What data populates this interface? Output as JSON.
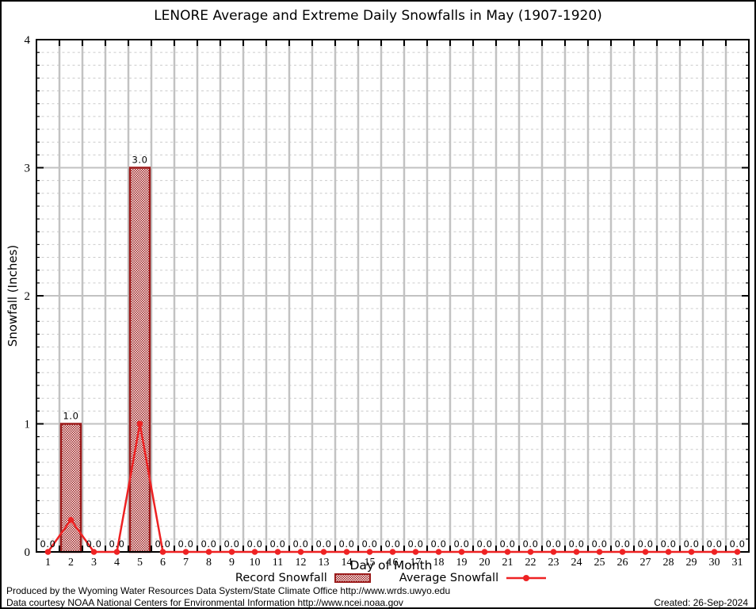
{
  "title": "LENORE Average and Extreme Daily Snowfalls in May (1907-1920)",
  "chart_data": {
    "type": "bar",
    "categories": [
      1,
      2,
      3,
      4,
      5,
      6,
      7,
      8,
      9,
      10,
      11,
      12,
      13,
      14,
      15,
      16,
      17,
      18,
      19,
      20,
      21,
      22,
      23,
      24,
      25,
      26,
      27,
      28,
      29,
      30,
      31
    ],
    "series": [
      {
        "name": "Record Snowfall",
        "render": "bar",
        "values": [
          0.0,
          1.0,
          0.0,
          0.0,
          3.0,
          0.0,
          0.0,
          0.0,
          0.0,
          0.0,
          0.0,
          0.0,
          0.0,
          0.0,
          0.0,
          0.0,
          0.0,
          0.0,
          0.0,
          0.0,
          0.0,
          0.0,
          0.0,
          0.0,
          0.0,
          0.0,
          0.0,
          0.0,
          0.0,
          0.0,
          0.0
        ]
      },
      {
        "name": "Average Snowfall",
        "render": "line",
        "values": [
          0.0,
          0.25,
          0.0,
          0.0,
          1.0,
          0.0,
          0.0,
          0.0,
          0.0,
          0.0,
          0.0,
          0.0,
          0.0,
          0.0,
          0.0,
          0.0,
          0.0,
          0.0,
          0.0,
          0.0,
          0.0,
          0.0,
          0.0,
          0.0,
          0.0,
          0.0,
          0.0,
          0.0,
          0.0,
          0.0,
          0.0
        ]
      }
    ],
    "title": "LENORE Average and Extreme Daily Snowfalls in May (1907-1920)",
    "xlabel": "Day of Month",
    "ylabel": "Snowfall (Inches)",
    "ylim": [
      0,
      4
    ],
    "y_major_step": 1,
    "y_minor_step": 0.1,
    "grid": true,
    "legend_position": "bottom",
    "show_value_labels": true
  },
  "legend": {
    "record_label": "Record Snowfall",
    "average_label": "Average Snowfall"
  },
  "footer": {
    "line1": "Produced by the Wyoming Water Resources Data System/State Climate Office http://www.wrds.uwyo.edu",
    "line2": "Data courtesy NOAA National Centers for Environmental Information http://www.ncei.noaa.gov",
    "created": "Created: 26-Sep-2024"
  },
  "colors": {
    "bar_dark_red": "#9b1a1a",
    "line_red": "#ee2223",
    "grid_major": "#c2c2c2",
    "grid_minor": "#cccccc",
    "axis_black": "#000000"
  }
}
